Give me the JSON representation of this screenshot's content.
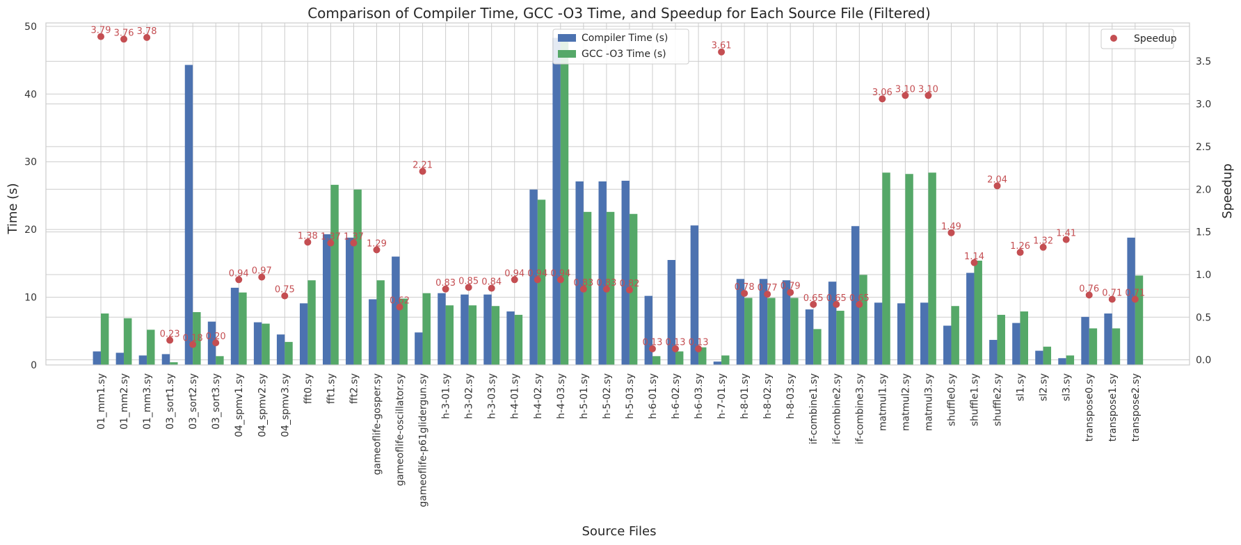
{
  "chart_data": {
    "type": "bar",
    "title": "Comparison of Compiler Time, GCC -O3 Time, and Speedup for Each Source File (Filtered)",
    "xlabel": "Source Files",
    "ylabel": "Time (s)",
    "y2label": "Speedup",
    "ylim": [
      0,
      50.5
    ],
    "y2lim": [
      -0.06,
      3.95
    ],
    "yticks": [
      0,
      10,
      20,
      30,
      40,
      50
    ],
    "y2ticks": [
      0.0,
      0.5,
      1.0,
      1.5,
      2.0,
      2.5,
      3.0,
      3.5
    ],
    "y2tick_labels": [
      "0.0",
      "0.5",
      "1.0",
      "1.5",
      "2.0",
      "2.5",
      "3.0",
      "3.5"
    ],
    "grid": true,
    "legend_left": {
      "placement": "top-center"
    },
    "legend_right": {
      "placement": "top-right"
    },
    "categories": [
      "01_mm1.sy",
      "01_mm2.sy",
      "01_mm3.sy",
      "03_sort1.sy",
      "03_sort2.sy",
      "03_sort3.sy",
      "04_spmv1.sy",
      "04_spmv2.sy",
      "04_spmv3.sy",
      "fft0.sy",
      "fft1.sy",
      "fft2.sy",
      "gameoflife-gosper.sy",
      "gameoflife-oscillator.sy",
      "gameoflife-p61glidergun.sy",
      "h-3-01.sy",
      "h-3-02.sy",
      "h-3-03.sy",
      "h-4-01.sy",
      "h-4-02.sy",
      "h-4-03.sy",
      "h-5-01.sy",
      "h-5-02.sy",
      "h-5-03.sy",
      "h-6-01.sy",
      "h-6-02.sy",
      "h-6-03.sy",
      "h-7-01.sy",
      "h-8-01.sy",
      "h-8-02.sy",
      "h-8-03.sy",
      "if-combine1.sy",
      "if-combine2.sy",
      "if-combine3.sy",
      "matmul1.sy",
      "matmul2.sy",
      "matmul3.sy",
      "shuffle0.sy",
      "shuffle1.sy",
      "shuffle2.sy",
      "sl1.sy",
      "sl2.sy",
      "sl3.sy",
      "transpose0.sy",
      "transpose1.sy",
      "transpose2.sy"
    ],
    "series": [
      {
        "name": "Compiler Time (s)",
        "kind": "bar",
        "color": "#4c72b0",
        "values": [
          2.0,
          1.8,
          1.4,
          1.6,
          44.3,
          6.4,
          11.4,
          6.3,
          4.5,
          9.1,
          19.3,
          18.8,
          9.7,
          16.0,
          4.8,
          10.6,
          10.4,
          10.4,
          7.9,
          25.9,
          48.3,
          27.1,
          27.1,
          27.2,
          10.2,
          15.5,
          20.6,
          0.5,
          12.7,
          12.7,
          12.5,
          8.2,
          12.3,
          20.5,
          9.2,
          9.1,
          9.2,
          5.8,
          13.6,
          3.7,
          6.2,
          2.1,
          1.0,
          7.1,
          7.6,
          18.8
        ]
      },
      {
        "name": "GCC -O3 Time (s)",
        "kind": "bar",
        "color": "#55a868",
        "values": [
          7.6,
          6.9,
          5.2,
          0.4,
          7.8,
          1.3,
          10.7,
          6.1,
          3.4,
          12.5,
          26.6,
          25.9,
          12.5,
          9.8,
          10.6,
          8.8,
          8.8,
          8.7,
          7.4,
          24.4,
          48.4,
          22.6,
          22.6,
          22.3,
          1.3,
          2.0,
          2.6,
          1.4,
          9.9,
          9.9,
          9.9,
          5.3,
          8.0,
          13.3,
          28.4,
          28.2,
          28.4,
          8.7,
          15.4,
          7.4,
          7.9,
          2.7,
          1.4,
          5.4,
          5.4,
          13.2
        ]
      },
      {
        "name": "Speedup",
        "kind": "scatter",
        "color": "#c44e52",
        "axis": "right",
        "values": [
          3.79,
          3.76,
          3.78,
          0.23,
          0.18,
          0.2,
          0.94,
          0.97,
          0.75,
          1.38,
          1.37,
          1.37,
          1.29,
          0.62,
          2.21,
          0.83,
          0.85,
          0.84,
          0.94,
          0.94,
          0.94,
          0.83,
          0.83,
          0.82,
          0.13,
          0.13,
          0.13,
          3.61,
          0.78,
          0.77,
          0.79,
          0.65,
          0.65,
          0.65,
          3.06,
          3.1,
          3.1,
          1.49,
          1.14,
          2.04,
          1.26,
          1.32,
          1.41,
          0.76,
          0.71,
          0.71
        ],
        "labels": [
          "3.79",
          "3.76",
          "3.78",
          "0.23",
          "0.18",
          "0.20",
          "0.94",
          "0.97",
          "0.75",
          "1.38",
          "1.37",
          "1.37",
          "1.29",
          "0.62",
          "2.21",
          "0.83",
          "0.85",
          "0.84",
          "0.94",
          "0.94",
          "0.94",
          "0.83",
          "0.83",
          "0.82",
          "0.13",
          "0.13",
          "0.13",
          "3.61",
          "0.78",
          "0.77",
          "0.79",
          "0.65",
          "0.65",
          "0.65",
          "3.06",
          "3.10",
          "3.10",
          "1.49",
          "1.14",
          "2.04",
          "1.26",
          "1.32",
          "1.41",
          "0.76",
          "0.71",
          "0.71"
        ]
      }
    ]
  },
  "colors": {
    "background": "#ffffff",
    "grid": "#cccccc",
    "axis_right_label": "#c44e52"
  }
}
